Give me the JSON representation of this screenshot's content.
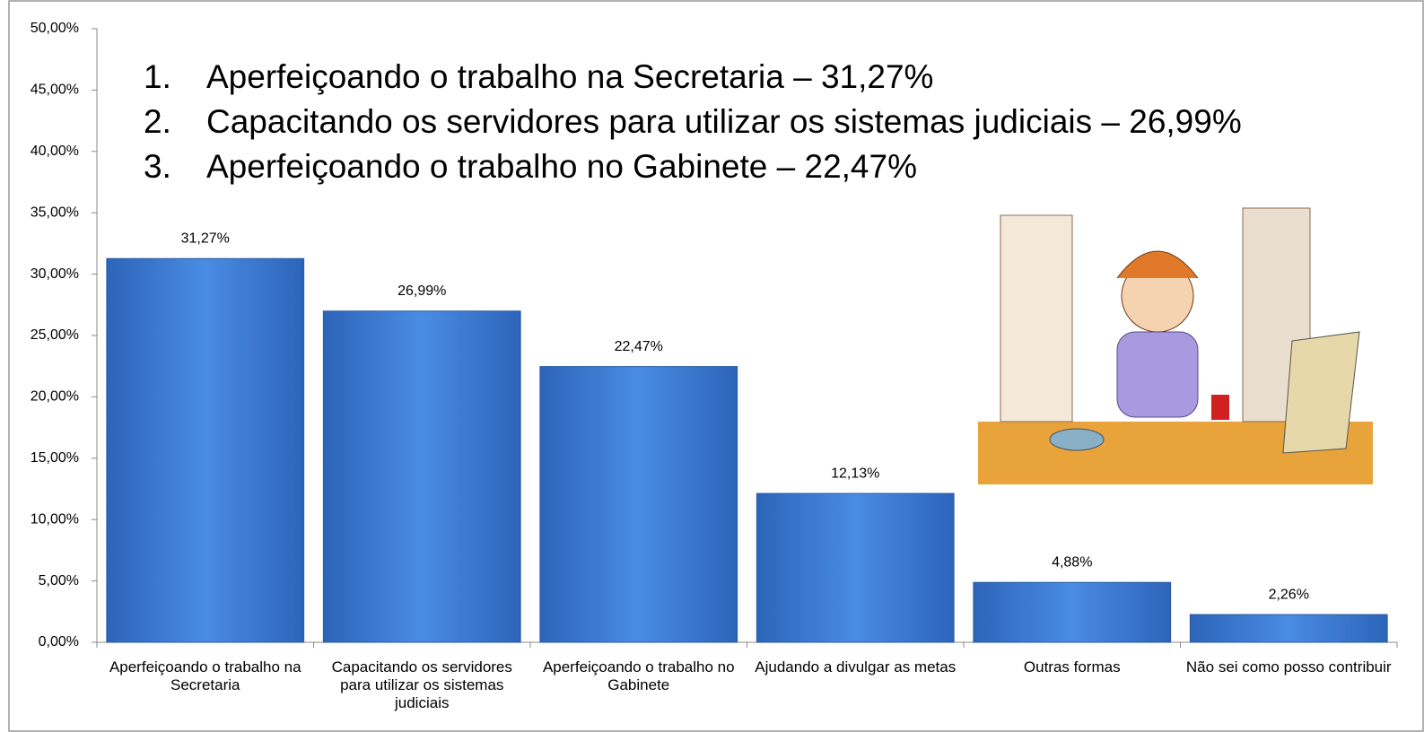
{
  "chart_data": {
    "type": "bar",
    "annotations": [
      {
        "number": "1.",
        "text": "Aperfeiçoando o trabalho na Secretaria – 31,27%"
      },
      {
        "number": "2.",
        "text": "Capacitando os servidores para utilizar os sistemas judiciais – 26,99%"
      },
      {
        "number": "3.",
        "text": "Aperfeiçoando o trabalho no Gabinete – 22,47%"
      }
    ],
    "categories": [
      "Aperfeiçoando o trabalho na Secretaria",
      "Capacitando os servidores para utilizar os sistemas judiciais",
      "Aperfeiçoando o trabalho no Gabinete",
      "Ajudando a divulgar as metas",
      "Outras formas",
      "Não sei como posso contribuir"
    ],
    "values": [
      31.27,
      26.99,
      22.47,
      12.13,
      4.88,
      2.26
    ],
    "value_labels": [
      "31,27%",
      "26,99%",
      "22,47%",
      "12,13%",
      "4,88%",
      "2,26%"
    ],
    "color": "#3b7dd8",
    "ylim": [
      0,
      50
    ],
    "yticks": [
      {
        "value": 0,
        "label": "0,00%"
      },
      {
        "value": 5,
        "label": "5,00%"
      },
      {
        "value": 10,
        "label": "10,00%"
      },
      {
        "value": 15,
        "label": "15,00%"
      },
      {
        "value": 20,
        "label": "20,00%"
      },
      {
        "value": 25,
        "label": "25,00%"
      },
      {
        "value": 30,
        "label": "30,00%"
      },
      {
        "value": 35,
        "label": "35,00%"
      },
      {
        "value": 40,
        "label": "40,00%"
      },
      {
        "value": 45,
        "label": "45,00%"
      },
      {
        "value": 50,
        "label": "50,00%"
      }
    ],
    "grid": false
  }
}
